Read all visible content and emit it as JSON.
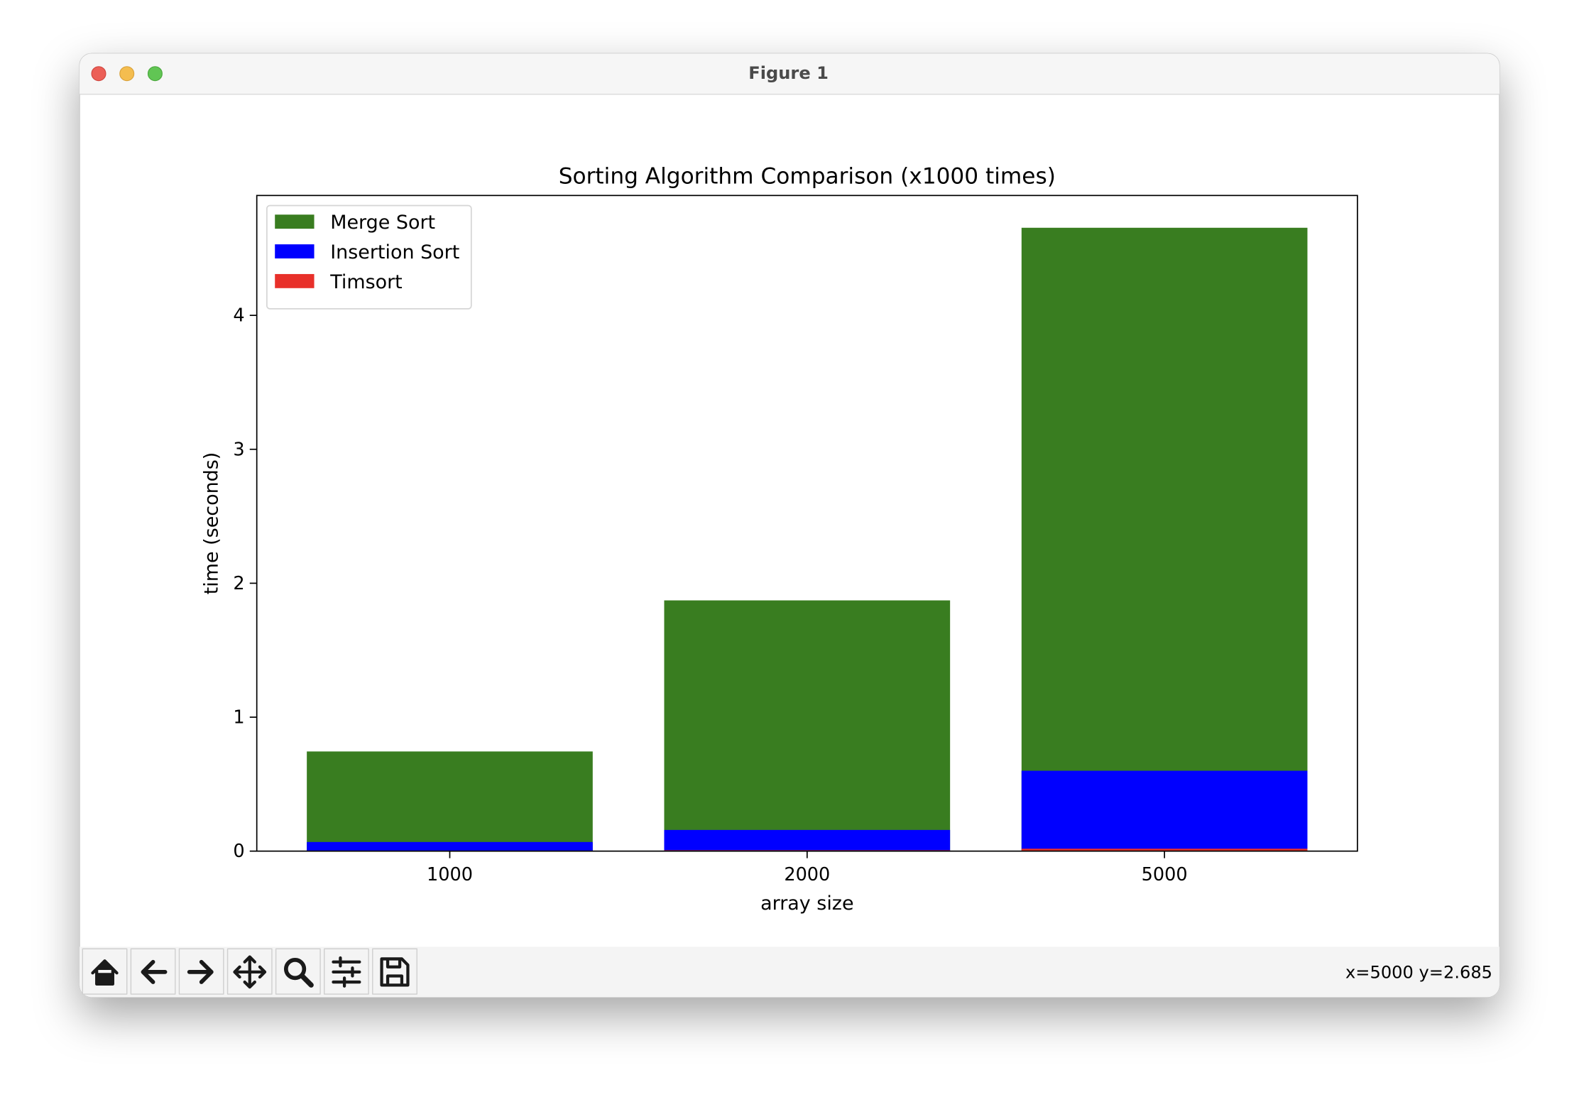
{
  "window": {
    "title": "Figure 1",
    "status": "x=5000 y=2.685"
  },
  "chart_data": {
    "type": "bar",
    "title": "Sorting Algorithm Comparison (x1000 times)",
    "xlabel": "array size",
    "ylabel": "time (seconds)",
    "categories": [
      "1000",
      "2000",
      "5000"
    ],
    "series": [
      {
        "name": "Merge Sort",
        "color": "#397d20",
        "values": [
          0.744,
          1.872,
          4.654
        ]
      },
      {
        "name": "Insertion Sort",
        "color": "#0000ff",
        "values": [
          0.068,
          0.158,
          0.6
        ]
      },
      {
        "name": "Timsort",
        "color": "#e8302a",
        "values": [
          0.003,
          0.007,
          0.018
        ]
      }
    ],
    "ylim": [
      0,
      4.895
    ],
    "yticks": [
      0,
      1,
      2,
      3,
      4
    ],
    "legend": "upper left"
  }
}
